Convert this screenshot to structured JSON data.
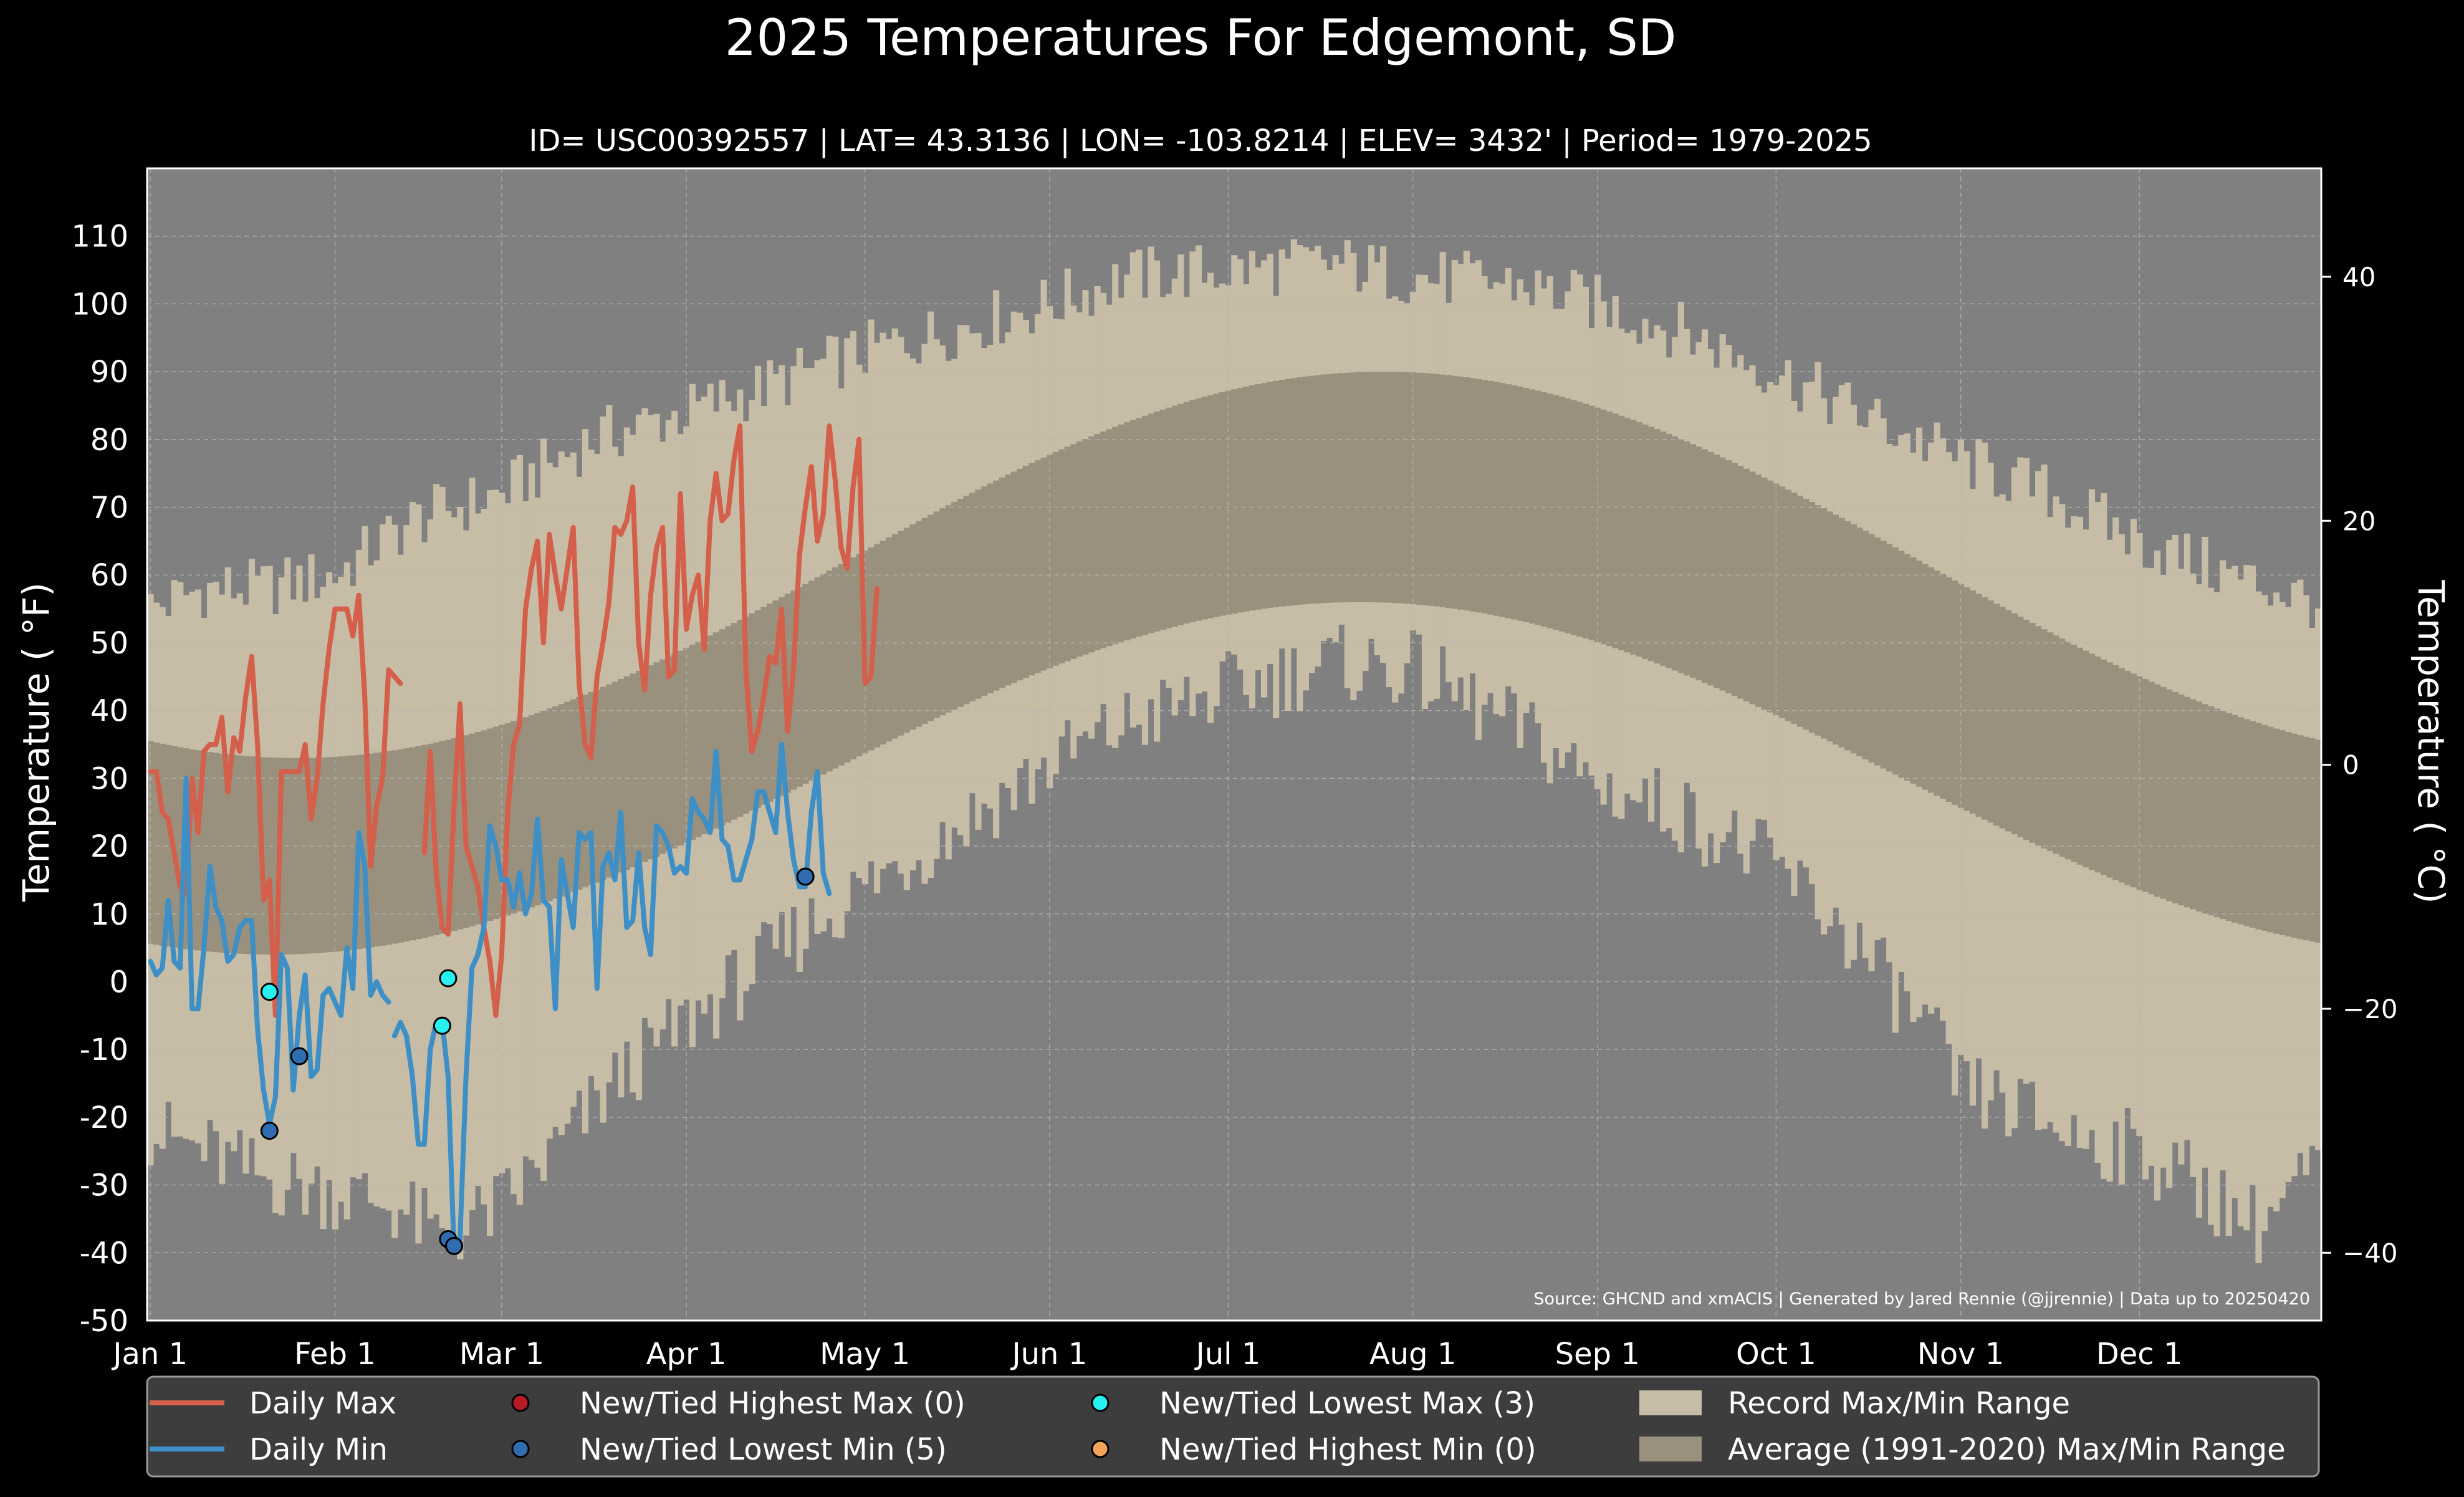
{
  "chart_data": {
    "type": "line",
    "title": "2025 Temperatures For Edgemont, SD",
    "subtitle": "ID= USC00392557 | LAT= 43.3136 | LON= -103.8214 | ELEV= 3432' | Period= 1979-2025",
    "ylabel_left": "Temperature ( °F)",
    "ylabel_right": "Temperature ( °C)",
    "source": "Source: GHCND and xmACIS | Generated by Jared Rennie (@jjrennie) | Data up to 20250420",
    "ylim": [
      -50,
      120
    ],
    "y_ticks": [
      "110",
      "100",
      "90",
      "80",
      "70",
      "60",
      "50",
      "40",
      "30",
      "20",
      "10",
      "0",
      "-10",
      "-20",
      "-30",
      "-40",
      "-50"
    ],
    "y2_ticks": [
      "40",
      "20",
      "0",
      "−20",
      "−40"
    ],
    "x_ticks": [
      {
        "day": 1,
        "label": "Jan 1"
      },
      {
        "day": 32,
        "label": "Feb 1"
      },
      {
        "day": 60,
        "label": "Mar 1"
      },
      {
        "day": 91,
        "label": "Apr 1"
      },
      {
        "day": 121,
        "label": "May 1"
      },
      {
        "day": 152,
        "label": "Jun 1"
      },
      {
        "day": 182,
        "label": "Jul 1"
      },
      {
        "day": 213,
        "label": "Aug 1"
      },
      {
        "day": 244,
        "label": "Sep 1"
      },
      {
        "day": 274,
        "label": "Oct 1"
      },
      {
        "day": 305,
        "label": "Nov 1"
      },
      {
        "day": 335,
        "label": "Dec 1"
      }
    ],
    "grid": true,
    "colors": {
      "background": "#000000",
      "plot_bg": "#808080",
      "record_range": "#c7bda6",
      "normal_range": "#9a907e",
      "daily_max": "#d45f4a",
      "daily_min": "#3d8fc6",
      "record_low_min_marker": "#2f6db0",
      "record_low_max_marker": "#27f0f0",
      "record_high_max_marker": "#b51c25",
      "record_high_min_marker": "#f2a35a",
      "legend_bg": "#3d3d3d"
    },
    "record_max_knots": [
      [
        1,
        55
      ],
      [
        10,
        58
      ],
      [
        20,
        58
      ],
      [
        32,
        60
      ],
      [
        45,
        68
      ],
      [
        60,
        72
      ],
      [
        75,
        80
      ],
      [
        91,
        84
      ],
      [
        105,
        88
      ],
      [
        121,
        93
      ],
      [
        135,
        96
      ],
      [
        152,
        100
      ],
      [
        165,
        104
      ],
      [
        182,
        105
      ],
      [
        200,
        106
      ],
      [
        213,
        104
      ],
      [
        230,
        103
      ],
      [
        244,
        100
      ],
      [
        258,
        96
      ],
      [
        274,
        90
      ],
      [
        290,
        83
      ],
      [
        305,
        77
      ],
      [
        320,
        72
      ],
      [
        335,
        65
      ],
      [
        350,
        60
      ],
      [
        365,
        56
      ]
    ],
    "record_min_knots": [
      [
        1,
        -22
      ],
      [
        10,
        -25
      ],
      [
        20,
        -29
      ],
      [
        32,
        -31
      ],
      [
        42,
        -33
      ],
      [
        50,
        -38
      ],
      [
        60,
        -33
      ],
      [
        70,
        -24
      ],
      [
        80,
        -14
      ],
      [
        91,
        -6
      ],
      [
        100,
        0
      ],
      [
        110,
        7
      ],
      [
        121,
        14
      ],
      [
        135,
        22
      ],
      [
        152,
        32
      ],
      [
        165,
        38
      ],
      [
        182,
        43
      ],
      [
        200,
        47
      ],
      [
        213,
        46
      ],
      [
        225,
        40
      ],
      [
        235,
        35
      ],
      [
        244,
        29
      ],
      [
        258,
        25
      ],
      [
        274,
        17
      ],
      [
        285,
        8
      ],
      [
        300,
        -8
      ],
      [
        305,
        -16
      ],
      [
        315,
        -19
      ],
      [
        325,
        -23
      ],
      [
        335,
        -25
      ],
      [
        345,
        -30
      ],
      [
        355,
        -36
      ],
      [
        365,
        -27
      ]
    ],
    "normal_max": {
      "min": 33,
      "max": 90,
      "peak_day": 208
    },
    "normal_min": {
      "min": 4,
      "max": 56,
      "peak_day": 204
    },
    "daily_max": [
      {
        "start_day": 1,
        "values": [
          31,
          31,
          25,
          24,
          19,
          14,
          13,
          30,
          22,
          34,
          35,
          35,
          39,
          28,
          36,
          34,
          42,
          48,
          35,
          12,
          15,
          -5,
          31,
          31,
          31,
          31,
          35,
          24,
          30,
          41,
          49,
          55,
          55,
          55,
          51,
          57,
          42,
          17,
          26,
          30,
          46,
          45,
          44
        ]
      },
      {
        "start_day": 47,
        "values": [
          19,
          34,
          16,
          8,
          7,
          26,
          41,
          20,
          17,
          14,
          8,
          3,
          -5,
          4,
          25,
          35,
          38,
          55,
          61,
          65,
          50,
          66,
          60,
          55,
          61,
          67,
          44,
          35,
          33,
          45,
          50,
          56,
          67,
          66,
          68,
          73,
          50,
          43,
          57,
          64,
          67,
          45,
          46,
          72,
          52,
          57,
          60,
          49,
          68,
          75,
          68,
          69,
          77,
          82,
          46,
          34,
          37,
          42,
          48,
          47,
          55,
          37,
          46,
          63,
          70,
          76,
          65,
          69,
          82,
          74,
          64,
          61,
          73,
          80,
          44,
          45,
          58
        ]
      }
    ],
    "daily_min": [
      {
        "start_day": 1,
        "values": [
          3,
          1,
          2,
          12,
          3,
          2,
          30,
          -4,
          -4,
          5,
          17,
          11,
          9,
          3,
          4,
          8,
          9,
          9,
          -7,
          -16,
          -21,
          -17,
          4,
          2,
          -16,
          -5,
          1,
          -14,
          -13,
          -2,
          -1,
          -3,
          -5,
          5,
          -1,
          22,
          17,
          -2,
          0,
          -2,
          -3
        ]
      },
      {
        "start_day": 42,
        "values": [
          -8,
          -6,
          -8,
          -14,
          -24,
          -24,
          -10,
          -6,
          -6,
          -14,
          -40,
          -38,
          -14,
          2,
          4,
          8,
          23,
          20,
          15,
          15,
          11,
          16,
          10,
          13,
          24,
          12,
          11,
          -4,
          18,
          13,
          8,
          22,
          21,
          22,
          -1,
          17,
          19,
          15,
          25,
          8,
          9,
          19,
          8,
          4,
          23,
          22,
          20,
          16,
          17,
          16,
          27,
          25,
          24,
          22,
          34,
          21,
          20,
          15,
          15,
          18,
          21,
          28,
          28,
          25,
          22,
          35,
          25,
          18,
          14,
          14,
          25,
          31,
          16,
          13
        ]
      }
    ],
    "markers": {
      "lowest_min": [
        [
          21,
          -22
        ],
        [
          26,
          -11
        ],
        [
          51,
          -38
        ],
        [
          52,
          -39
        ],
        [
          111,
          15.5
        ]
      ],
      "lowest_max": [
        [
          21,
          -1.5
        ],
        [
          50,
          -6.5
        ],
        [
          51,
          0.5
        ]
      ],
      "highest_max": [],
      "highest_min": []
    },
    "legend": [
      {
        "label": "Daily Max",
        "kind": "line",
        "color": "#d45f4a"
      },
      {
        "label": "Daily Min",
        "kind": "line",
        "color": "#3d8fc6"
      },
      {
        "label": "New/Tied Highest Max (0)",
        "kind": "dot",
        "color": "#b51c25"
      },
      {
        "label": "New/Tied Lowest Min (5)",
        "kind": "dot",
        "color": "#2f6db0"
      },
      {
        "label": "New/Tied Lowest Max (3)",
        "kind": "dot",
        "color": "#27f0f0"
      },
      {
        "label": "New/Tied Highest Min (0)",
        "kind": "dot",
        "color": "#f2a35a"
      },
      {
        "label": "Record Max/Min Range",
        "kind": "patch",
        "color": "#c7bda6"
      },
      {
        "label": "Average (1991-2020) Max/Min Range",
        "kind": "patch",
        "color": "#9a907e"
      }
    ],
    "legend_placement": "bottom"
  }
}
